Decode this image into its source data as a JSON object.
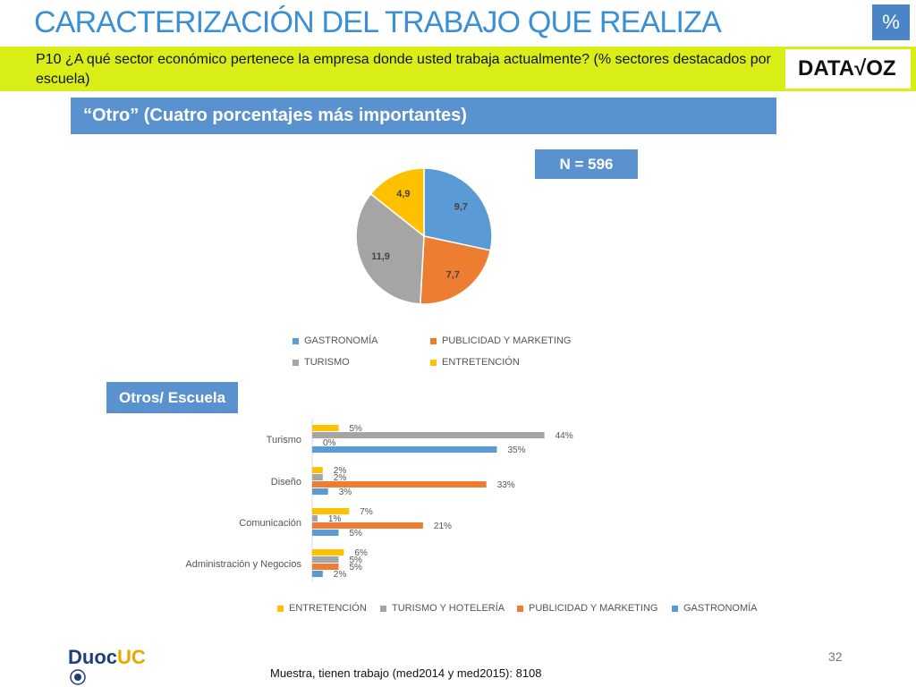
{
  "header": {
    "title": "CARACTERIZACIÓN DEL TRABAJO QUE REALIZA",
    "badge": "%",
    "question": "P10 ¿A qué sector económico pertenece la empresa donde usted trabaja actualmente? (% sectores destacados por escuela)",
    "logo": "DATA√OZ"
  },
  "section_title": "“Otro” (Cuatro porcentajes más importantes)",
  "n_label": "N = 596",
  "otros_label": "Otros/ Escuela",
  "footer": {
    "brand_duoc": "Duoc",
    "brand_uc": "UC",
    "page_number": "32",
    "note": "Muestra, tienen trabajo (med2014 y med2015): 8108"
  },
  "chart_data": [
    {
      "type": "pie",
      "title": "",
      "categories": [
        "GASTRONOMÍA",
        "PUBLICIDAD Y MARKETING",
        "TURISMO",
        "ENTRETENCIÓN"
      ],
      "values": [
        9.7,
        7.7,
        11.9,
        4.9
      ],
      "value_labels": [
        "9,7",
        "7,7",
        "11,9",
        "4,9"
      ],
      "colors": [
        "#5b9bd5",
        "#ed7d31",
        "#a5a5a5",
        "#ffc000"
      ],
      "legend_position": "bottom"
    },
    {
      "type": "bar",
      "orientation": "horizontal",
      "categories": [
        "Turismo",
        "Diseño",
        "Comunicación",
        "Administración y Negocios"
      ],
      "series": [
        {
          "name": "ENTRETENCIÓN",
          "color": "#ffc000",
          "values": [
            5,
            2,
            7,
            6
          ],
          "labels": [
            "5%",
            "2%",
            "7%",
            "6%"
          ]
        },
        {
          "name": "TURISMO Y HOTELERÍA",
          "color": "#a5a5a5",
          "values": [
            44,
            2,
            1,
            5
          ],
          "labels": [
            "44%",
            "2%",
            "1%",
            "5%"
          ]
        },
        {
          "name": "PUBLICIDAD Y MARKETING",
          "color": "#ed7d31",
          "values": [
            0,
            33,
            21,
            5
          ],
          "labels": [
            "0%",
            "33%",
            "21%",
            "5%"
          ]
        },
        {
          "name": "GASTRONOMÍA",
          "color": "#5b9bd5",
          "values": [
            35,
            3,
            5,
            2
          ],
          "labels": [
            "35%",
            "3%",
            "5%",
            "2%"
          ]
        }
      ],
      "xlim": [
        0,
        50
      ],
      "grid": false,
      "legend_position": "bottom"
    }
  ]
}
